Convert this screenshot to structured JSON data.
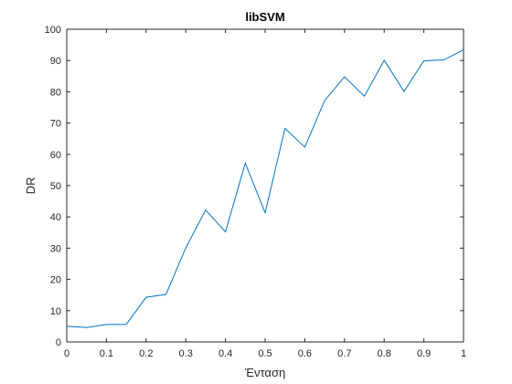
{
  "chart_data": {
    "type": "line",
    "title": "libSVM",
    "xlabel": "Ένταση",
    "ylabel": "DR",
    "xlim": [
      0,
      1
    ],
    "ylim": [
      0,
      100
    ],
    "xticks": [
      0,
      0.1,
      0.2,
      0.3,
      0.4,
      0.5,
      0.6,
      0.7,
      0.8,
      0.9,
      1
    ],
    "xtick_labels": [
      "0",
      "0.1",
      "0.2",
      "0.3",
      "0.4",
      "0.5",
      "0.6",
      "0.7",
      "0.8",
      "0.9",
      "1"
    ],
    "yticks": [
      0,
      10,
      20,
      30,
      40,
      50,
      60,
      70,
      80,
      90,
      100
    ],
    "ytick_labels": [
      "0",
      "10",
      "20",
      "30",
      "40",
      "50",
      "60",
      "70",
      "80",
      "90",
      "100"
    ],
    "grid": false,
    "colors": {
      "line": "#0072bd",
      "axes": "#262626",
      "background": "#ffffff"
    },
    "series": [
      {
        "x": [
          0,
          0.05,
          0.1,
          0.15,
          0.2,
          0.25,
          0.3,
          0.35,
          0.4,
          0.45,
          0.5,
          0.55,
          0.6,
          0.65,
          0.7,
          0.75,
          0.8,
          0.85,
          0.9,
          0.95,
          1
        ],
        "values": [
          5,
          4.6,
          5.6,
          5.6,
          14.3,
          15.2,
          30.1,
          42.2,
          35.2,
          57.2,
          41.3,
          68.3,
          62.3,
          77.2,
          84.8,
          78.6,
          90.1,
          80.1,
          89.9,
          90.2,
          93.4
        ]
      }
    ]
  }
}
